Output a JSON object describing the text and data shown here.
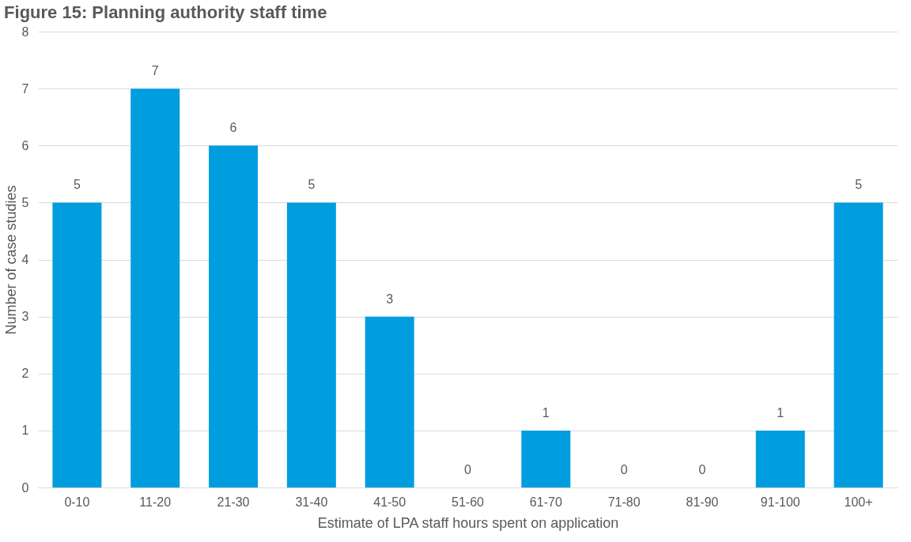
{
  "chart_data": {
    "type": "bar",
    "title": "Figure 15: Planning authority staff time",
    "xlabel": "Estimate of LPA staff hours spent on application",
    "ylabel": "Number of case studies",
    "categories": [
      "0-10",
      "11-20",
      "21-30",
      "31-40",
      "41-50",
      "51-60",
      "61-70",
      "71-80",
      "81-90",
      "91-100",
      "100+"
    ],
    "values": [
      5,
      7,
      6,
      5,
      3,
      0,
      1,
      0,
      0,
      1,
      5
    ],
    "color": "#009ddf",
    "ylim": [
      0,
      8
    ],
    "yticks": [
      0,
      1,
      2,
      3,
      4,
      5,
      6,
      7,
      8
    ],
    "grid": "y",
    "data_labels": true
  }
}
